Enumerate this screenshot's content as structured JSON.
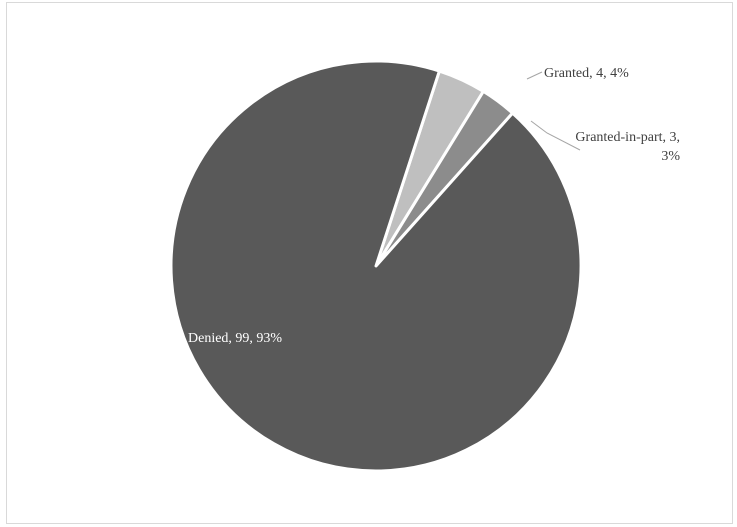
{
  "chart_data": {
    "type": "pie",
    "title": "",
    "start_angle_deg": 18,
    "slices": [
      {
        "name": "Granted",
        "value": 4,
        "percent": 4,
        "color": "#bfbfbf",
        "label": "Granted, 4, 4%",
        "label_lines": [
          "Granted, 4, 4%"
        ]
      },
      {
        "name": "Granted-in-part",
        "value": 3,
        "percent": 3,
        "color": "#8c8c8c",
        "label": "Granted-in-part, 3, 3%",
        "label_lines": [
          "Granted-in-part, 3,",
          "3%"
        ]
      },
      {
        "name": "Denied",
        "value": 99,
        "percent": 93,
        "color": "#595959",
        "label": "Denied, 99, 93%",
        "label_lines": [
          "Denied, 99, 93%"
        ]
      }
    ]
  }
}
